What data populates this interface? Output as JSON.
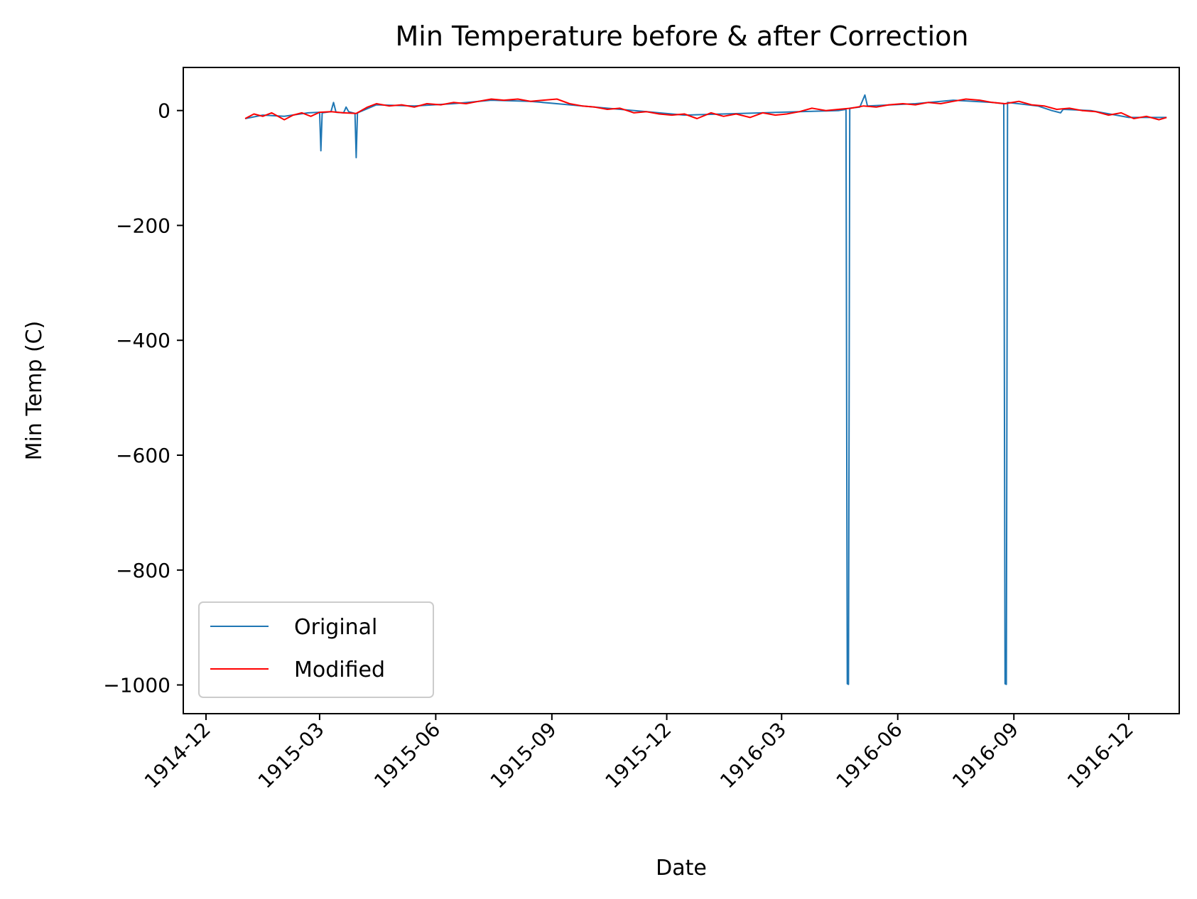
{
  "chart_data": {
    "type": "line",
    "title": "Min Temperature before & after Correction",
    "xlabel": "Date",
    "ylabel": "Min Temp (C)",
    "xlim": [
      "1914-11-13",
      "1917-01-10"
    ],
    "ylim": [
      -1050,
      75
    ],
    "x_ticks": [
      "1914-12",
      "1915-03",
      "1915-06",
      "1915-09",
      "1915-12",
      "1916-03",
      "1916-06",
      "1916-09",
      "1916-12"
    ],
    "y_ticks": [
      0,
      -200,
      -400,
      -600,
      -800,
      -1000
    ],
    "y_tick_labels": [
      "0",
      "−200",
      "−400",
      "−600",
      "−800",
      "−1000"
    ],
    "legend": {
      "position": "lower-left"
    },
    "series": [
      {
        "name": "Original",
        "color": "#1f77b4",
        "points": [
          [
            "1915-01-01",
            -14
          ],
          [
            "1915-01-15",
            -8
          ],
          [
            "1915-02-01",
            -10
          ],
          [
            "1915-02-20",
            -4
          ],
          [
            "1915-03-01",
            -3
          ],
          [
            "1915-03-02",
            -70
          ],
          [
            "1915-03-03",
            -4
          ],
          [
            "1915-03-10",
            -2
          ],
          [
            "1915-03-12",
            14
          ],
          [
            "1915-03-14",
            -3
          ],
          [
            "1915-03-20",
            -4
          ],
          [
            "1915-03-22",
            6
          ],
          [
            "1915-03-24",
            -2
          ],
          [
            "1915-03-29",
            -5
          ],
          [
            "1915-03-30",
            -82
          ],
          [
            "1915-03-31",
            -4
          ],
          [
            "1915-04-15",
            10
          ],
          [
            "1915-05-15",
            8
          ],
          [
            "1915-06-15",
            12
          ],
          [
            "1915-07-15",
            18
          ],
          [
            "1915-08-15",
            16
          ],
          [
            "1915-09-15",
            10
          ],
          [
            "1915-10-15",
            4
          ],
          [
            "1915-11-15",
            -2
          ],
          [
            "1915-12-15",
            -8
          ],
          [
            "1916-01-15",
            -6
          ],
          [
            "1916-02-15",
            -4
          ],
          [
            "1916-03-15",
            -2
          ],
          [
            "1916-04-15",
            0
          ],
          [
            "1916-04-21",
            2
          ],
          [
            "1916-04-22",
            -998
          ],
          [
            "1916-04-23",
            -999
          ],
          [
            "1916-04-24",
            4
          ],
          [
            "1916-05-02",
            6
          ],
          [
            "1916-05-06",
            27
          ],
          [
            "1916-05-08",
            8
          ],
          [
            "1916-06-15",
            12
          ],
          [
            "1916-07-15",
            18
          ],
          [
            "1916-08-15",
            14
          ],
          [
            "1916-08-24",
            12
          ],
          [
            "1916-08-25",
            -998
          ],
          [
            "1916-08-26",
            -999
          ],
          [
            "1916-08-27",
            14
          ],
          [
            "1916-09-20",
            8
          ],
          [
            "1916-10-01",
            0
          ],
          [
            "1916-10-08",
            -4
          ],
          [
            "1916-10-10",
            2
          ],
          [
            "1916-11-01",
            0
          ],
          [
            "1916-12-01",
            -12
          ],
          [
            "1916-12-31",
            -12
          ]
        ]
      },
      {
        "name": "Modified",
        "color": "#ff0000",
        "points": [
          [
            "1915-01-01",
            -14
          ],
          [
            "1915-01-08",
            -6
          ],
          [
            "1915-01-15",
            -10
          ],
          [
            "1915-01-22",
            -4
          ],
          [
            "1915-02-01",
            -16
          ],
          [
            "1915-02-08",
            -8
          ],
          [
            "1915-02-15",
            -4
          ],
          [
            "1915-02-22",
            -10
          ],
          [
            "1915-03-01",
            -3
          ],
          [
            "1915-03-10",
            -2
          ],
          [
            "1915-03-20",
            -4
          ],
          [
            "1915-03-30",
            -5
          ],
          [
            "1915-04-08",
            6
          ],
          [
            "1915-04-15",
            12
          ],
          [
            "1915-04-25",
            8
          ],
          [
            "1915-05-05",
            10
          ],
          [
            "1915-05-15",
            6
          ],
          [
            "1915-05-25",
            12
          ],
          [
            "1915-06-05",
            10
          ],
          [
            "1915-06-15",
            14
          ],
          [
            "1915-06-25",
            12
          ],
          [
            "1915-07-05",
            16
          ],
          [
            "1915-07-15",
            20
          ],
          [
            "1915-07-25",
            18
          ],
          [
            "1915-08-05",
            20
          ],
          [
            "1915-08-15",
            16
          ],
          [
            "1915-08-25",
            18
          ],
          [
            "1915-09-05",
            20
          ],
          [
            "1915-09-15",
            12
          ],
          [
            "1915-09-25",
            8
          ],
          [
            "1915-10-05",
            6
          ],
          [
            "1915-10-15",
            2
          ],
          [
            "1915-10-25",
            4
          ],
          [
            "1915-11-05",
            -4
          ],
          [
            "1915-11-15",
            -2
          ],
          [
            "1915-11-25",
            -6
          ],
          [
            "1915-12-05",
            -8
          ],
          [
            "1915-12-15",
            -6
          ],
          [
            "1915-12-25",
            -14
          ],
          [
            "1916-01-05",
            -4
          ],
          [
            "1916-01-15",
            -10
          ],
          [
            "1916-01-25",
            -6
          ],
          [
            "1916-02-05",
            -12
          ],
          [
            "1916-02-15",
            -4
          ],
          [
            "1916-02-25",
            -8
          ],
          [
            "1916-03-05",
            -6
          ],
          [
            "1916-03-15",
            -2
          ],
          [
            "1916-03-25",
            4
          ],
          [
            "1916-04-05",
            0
          ],
          [
            "1916-04-15",
            2
          ],
          [
            "1916-04-25",
            4
          ],
          [
            "1916-05-05",
            8
          ],
          [
            "1916-05-15",
            6
          ],
          [
            "1916-05-25",
            10
          ],
          [
            "1916-06-05",
            12
          ],
          [
            "1916-06-15",
            10
          ],
          [
            "1916-06-25",
            14
          ],
          [
            "1916-07-05",
            12
          ],
          [
            "1916-07-15",
            16
          ],
          [
            "1916-07-25",
            20
          ],
          [
            "1916-08-05",
            18
          ],
          [
            "1916-08-15",
            14
          ],
          [
            "1916-08-25",
            12
          ],
          [
            "1916-09-05",
            16
          ],
          [
            "1916-09-15",
            10
          ],
          [
            "1916-09-25",
            8
          ],
          [
            "1916-10-05",
            2
          ],
          [
            "1916-10-15",
            4
          ],
          [
            "1916-10-25",
            0
          ],
          [
            "1916-11-05",
            -2
          ],
          [
            "1916-11-15",
            -8
          ],
          [
            "1916-11-25",
            -4
          ],
          [
            "1916-12-05",
            -14
          ],
          [
            "1916-12-15",
            -10
          ],
          [
            "1916-12-25",
            -16
          ],
          [
            "1916-12-31",
            -12
          ]
        ]
      }
    ]
  }
}
